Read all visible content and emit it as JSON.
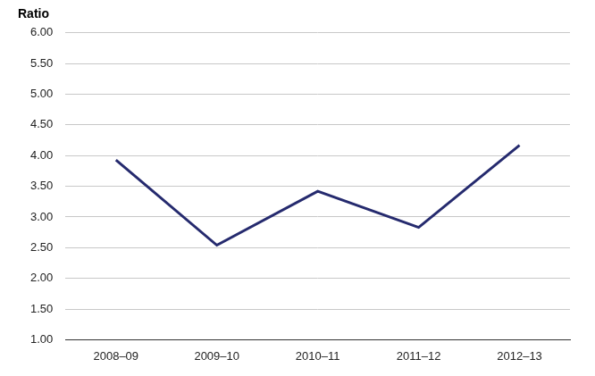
{
  "chart_data": {
    "type": "line",
    "y_label": "Ratio",
    "categories": [
      "2008–09",
      "2009–10",
      "2010–11",
      "2011–12",
      "2012–13"
    ],
    "values": [
      3.93,
      2.54,
      3.42,
      2.83,
      4.17
    ],
    "color": "#252a6e",
    "ylim": [
      1,
      6
    ],
    "yticks": [
      {
        "value": 1,
        "label": "1.00"
      },
      {
        "value": 1.5,
        "label": "1.50"
      },
      {
        "value": 2,
        "label": "2.00"
      },
      {
        "value": 2.5,
        "label": "2.50"
      },
      {
        "value": 3,
        "label": "3.00"
      },
      {
        "value": 3.5,
        "label": "3.50"
      },
      {
        "value": 4,
        "label": "4.00"
      },
      {
        "value": 4.5,
        "label": "4.50"
      },
      {
        "value": 5,
        "label": "5.00"
      },
      {
        "value": 5.5,
        "label": "5.50"
      },
      {
        "value": 6,
        "label": "6.00"
      }
    ],
    "grid": true
  }
}
